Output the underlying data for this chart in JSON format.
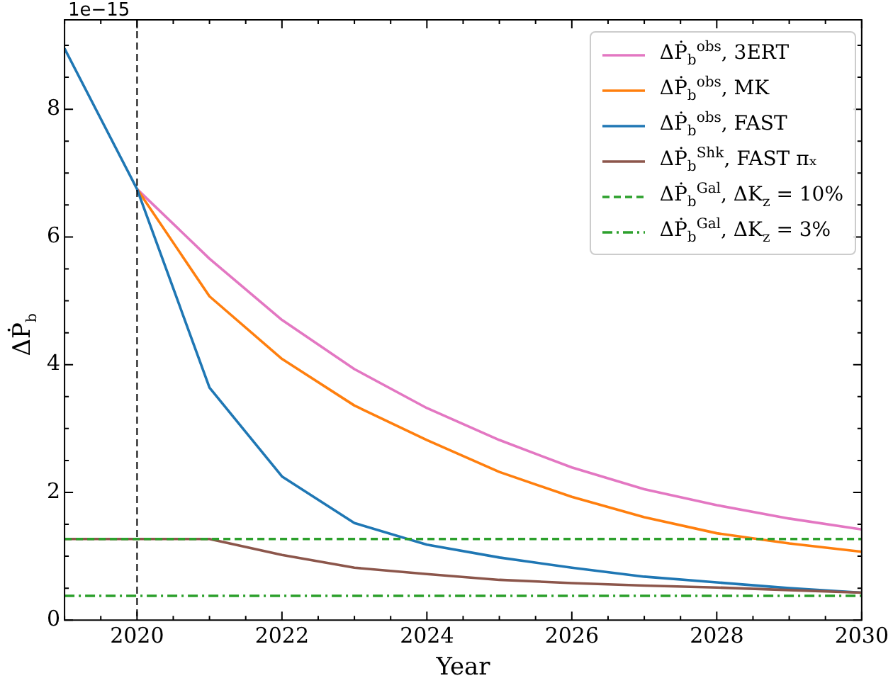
{
  "chart_data": {
    "type": "line",
    "xlabel": "Year",
    "ylabel": "ΔṖ$_{b}$",
    "annotations": [
      "1e−15"
    ],
    "x": [
      2019,
      2020,
      2021,
      2022,
      2023,
      2024,
      2025,
      2026,
      2027,
      2028,
      2029,
      2030
    ],
    "series": [
      {
        "name": "ΔṖ$_{b}$$^{obs}$, 3ERT",
        "color": "#e377c2",
        "values": [
          null,
          6.75,
          5.66,
          4.7,
          3.93,
          3.32,
          2.82,
          2.39,
          2.05,
          1.8,
          1.59,
          1.42
        ]
      },
      {
        "name": "ΔṖ$_{b}$$^{obs}$, MK",
        "color": "#ff7f0e",
        "values": [
          null,
          6.75,
          5.07,
          4.09,
          3.36,
          2.82,
          2.32,
          1.93,
          1.61,
          1.36,
          1.2,
          1.07
        ]
      },
      {
        "name": "ΔṖ$_{b}$$^{obs}$, FAST",
        "color": "#1f77b4",
        "values": [
          8.95,
          6.75,
          3.64,
          2.25,
          1.52,
          1.18,
          0.98,
          0.82,
          0.68,
          0.59,
          0.5,
          0.43
        ]
      },
      {
        "name": "ΔṖ$_{b}$$^{Shk}$, FAST πₓ",
        "color": "#8c564b",
        "values": [
          1.27,
          1.27,
          1.27,
          1.02,
          0.82,
          0.72,
          0.63,
          0.58,
          0.54,
          0.51,
          0.47,
          0.43
        ]
      },
      {
        "name": "ΔṖ$_{b}$$^{Gal}$, ΔK$_{z}$ = 10%",
        "color": "#2ca02c",
        "line_style": "dashed",
        "values": [
          1.27,
          1.27,
          1.27,
          1.27,
          1.27,
          1.27,
          1.27,
          1.27,
          1.27,
          1.27,
          1.27,
          1.27
        ]
      },
      {
        "name": "ΔṖ$_{b}$$^{Gal}$, ΔK$_{z}$ = 3%",
        "color": "#2ca02c",
        "line_style": "dashdot",
        "values": [
          0.38,
          0.38,
          0.38,
          0.38,
          0.38,
          0.38,
          0.38,
          0.38,
          0.38,
          0.38,
          0.38,
          0.38
        ]
      }
    ],
    "xlim": [
      2019,
      2030
    ],
    "xticks": [
      2020,
      2022,
      2024,
      2026,
      2028,
      2030
    ],
    "ylim": [
      0,
      9.4
    ],
    "yticks": [
      0,
      2,
      4,
      6,
      8
    ],
    "ref_lines": [
      {
        "axis": "x",
        "value": 2020,
        "color": "#000000",
        "line_style": "dashed"
      }
    ],
    "grid": false,
    "legend": "top right",
    "marker": "none",
    "line_style": "solid"
  }
}
